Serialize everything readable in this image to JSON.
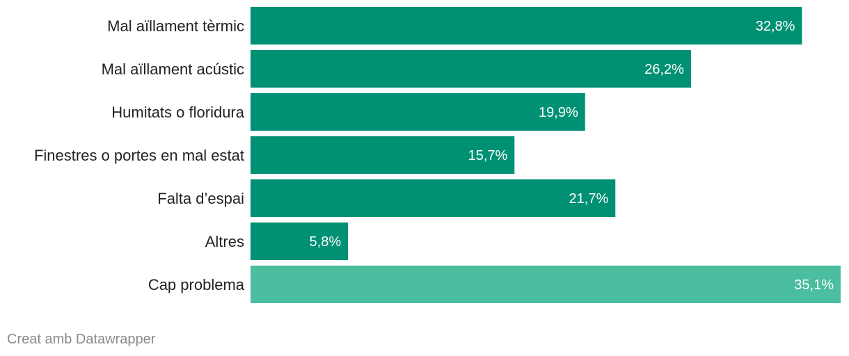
{
  "chart_data": {
    "type": "bar",
    "orientation": "horizontal",
    "categories": [
      "Mal aïllament tèrmic",
      "Mal aïllament acústic",
      "Humitats o floridura",
      "Finestres o portes en mal estat",
      "Falta d’espai",
      "Altres",
      "Cap problema"
    ],
    "values": [
      32.8,
      26.2,
      19.9,
      15.7,
      21.7,
      5.8,
      35.1
    ],
    "value_labels": [
      "32,8%",
      "26,2%",
      "19,9%",
      "15,7%",
      "21,7%",
      "5,8%",
      "35,1%"
    ],
    "bar_colors": [
      "#009174",
      "#009174",
      "#009174",
      "#009174",
      "#009174",
      "#009174",
      "#4bbe9f"
    ],
    "xlim": [
      0,
      35.1
    ],
    "grid": false,
    "title": "",
    "xlabel": "",
    "ylabel": ""
  },
  "footer": {
    "credit": "Creat amb Datawrapper"
  }
}
